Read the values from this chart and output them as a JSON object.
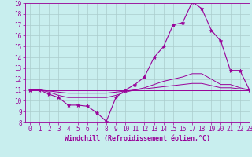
{
  "xlabel": "Windchill (Refroidissement éolien,°C)",
  "background_color": "#c8eeee",
  "grid_color": "#aacccc",
  "line_color": "#990099",
  "xmin": 0,
  "xmax": 23,
  "ymin": 8,
  "ymax": 19,
  "x_ticks": [
    0,
    1,
    2,
    3,
    4,
    5,
    6,
    7,
    8,
    9,
    10,
    11,
    12,
    13,
    14,
    15,
    16,
    17,
    18,
    19,
    20,
    21,
    22,
    23
  ],
  "y_ticks": [
    8,
    9,
    10,
    11,
    12,
    13,
    14,
    15,
    16,
    17,
    18,
    19
  ],
  "line1_x": [
    0,
    1,
    2,
    3,
    4,
    5,
    6,
    7,
    8,
    9,
    10,
    11,
    12,
    13,
    14,
    15,
    16,
    17,
    18,
    19,
    20,
    21,
    22,
    23
  ],
  "line1_y": [
    11.0,
    11.0,
    10.6,
    10.3,
    9.6,
    9.6,
    9.5,
    8.9,
    8.1,
    10.3,
    11.0,
    11.5,
    12.2,
    14.0,
    15.0,
    17.0,
    17.2,
    19.1,
    18.5,
    16.5,
    15.5,
    12.8,
    12.8,
    11.0
  ],
  "line2_x": [
    0,
    1,
    2,
    3,
    4,
    5,
    6,
    7,
    8,
    9,
    10,
    11,
    12,
    13,
    14,
    15,
    16,
    17,
    18,
    19,
    20,
    21,
    22,
    23
  ],
  "line2_y": [
    11.0,
    11.0,
    10.8,
    10.5,
    10.3,
    10.3,
    10.3,
    10.3,
    10.3,
    10.5,
    10.8,
    11.0,
    11.2,
    11.5,
    11.8,
    12.0,
    12.2,
    12.5,
    12.5,
    12.0,
    11.5,
    11.5,
    11.2,
    11.0
  ],
  "line3_x": [
    0,
    1,
    2,
    3,
    4,
    5,
    6,
    7,
    8,
    9,
    10,
    11,
    12,
    13,
    14,
    15,
    16,
    17,
    18,
    19,
    20,
    21,
    22,
    23
  ],
  "line3_y": [
    11.0,
    11.0,
    10.9,
    10.8,
    10.7,
    10.7,
    10.7,
    10.7,
    10.7,
    10.8,
    10.9,
    11.0,
    11.1,
    11.2,
    11.3,
    11.4,
    11.5,
    11.6,
    11.6,
    11.4,
    11.2,
    11.2,
    11.1,
    11.0
  ],
  "line4_x": [
    0,
    1,
    2,
    3,
    4,
    5,
    6,
    7,
    8,
    9,
    10,
    11,
    12,
    13,
    14,
    15,
    16,
    17,
    18,
    19,
    20,
    21,
    22,
    23
  ],
  "line4_y": [
    11.0,
    11.0,
    11.0,
    11.0,
    11.0,
    11.0,
    11.0,
    11.0,
    11.0,
    11.0,
    11.0,
    11.0,
    11.0,
    11.0,
    11.0,
    11.0,
    11.0,
    11.0,
    11.0,
    11.0,
    11.0,
    11.0,
    11.0,
    11.0
  ],
  "tick_fontsize": 5.5,
  "xlabel_fontsize": 6.0
}
